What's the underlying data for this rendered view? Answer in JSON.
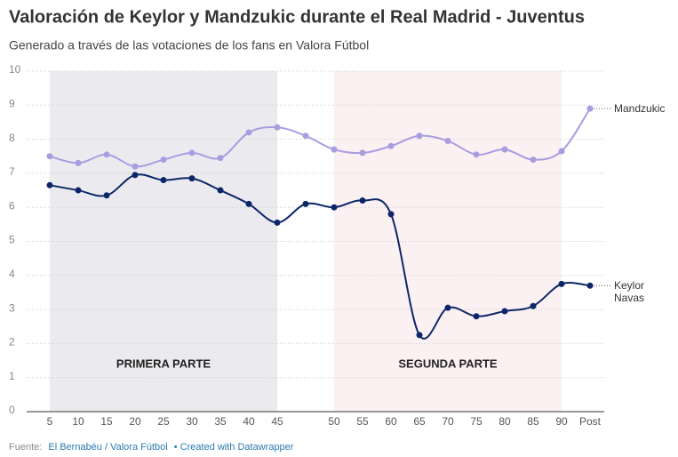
{
  "chart_data": {
    "type": "line",
    "title": "Valoración de Keylor y Mandzukic durante el Real Madrid - Juventus",
    "subtitle": "Generado a través de las votaciones de los fans en Valora Fútbol",
    "categories": [
      "5",
      "10",
      "15",
      "20",
      "25",
      "30",
      "35",
      "40",
      "45",
      null,
      "50",
      "55",
      "60",
      "65",
      "70",
      "75",
      "80",
      "85",
      "90",
      "Post"
    ],
    "series": [
      {
        "name": "Mandzukic",
        "color": "#a99de0",
        "values": [
          7.5,
          7.3,
          7.55,
          7.2,
          7.4,
          7.6,
          7.45,
          8.2,
          8.35,
          8.1,
          7.7,
          7.6,
          7.8,
          8.1,
          7.95,
          7.55,
          7.7,
          7.4,
          7.65,
          8.9
        ]
      },
      {
        "name": "Keylor Navas",
        "color": "#0d2669",
        "values": [
          6.65,
          6.5,
          6.35,
          6.95,
          6.8,
          6.85,
          6.5,
          6.1,
          5.55,
          6.1,
          6.0,
          6.2,
          5.8,
          2.25,
          3.05,
          2.8,
          2.95,
          3.1,
          3.75,
          3.7
        ]
      }
    ],
    "regions": [
      {
        "label": "PRIMERA PARTE",
        "from": "5",
        "to": "45",
        "color": "#ebebef"
      },
      {
        "label": "SEGUNDA PARTE",
        "from": "50",
        "to": "90",
        "color": "#fbf0f2"
      }
    ],
    "ylim": [
      0,
      10
    ],
    "yticks": [
      0,
      1,
      2,
      3,
      4,
      5,
      6,
      7,
      8,
      9,
      10
    ],
    "grid": true,
    "footer": [
      "Fuente:",
      "El Bernabéu / Valora Fútbol",
      "• Created with Datawrapper"
    ]
  }
}
